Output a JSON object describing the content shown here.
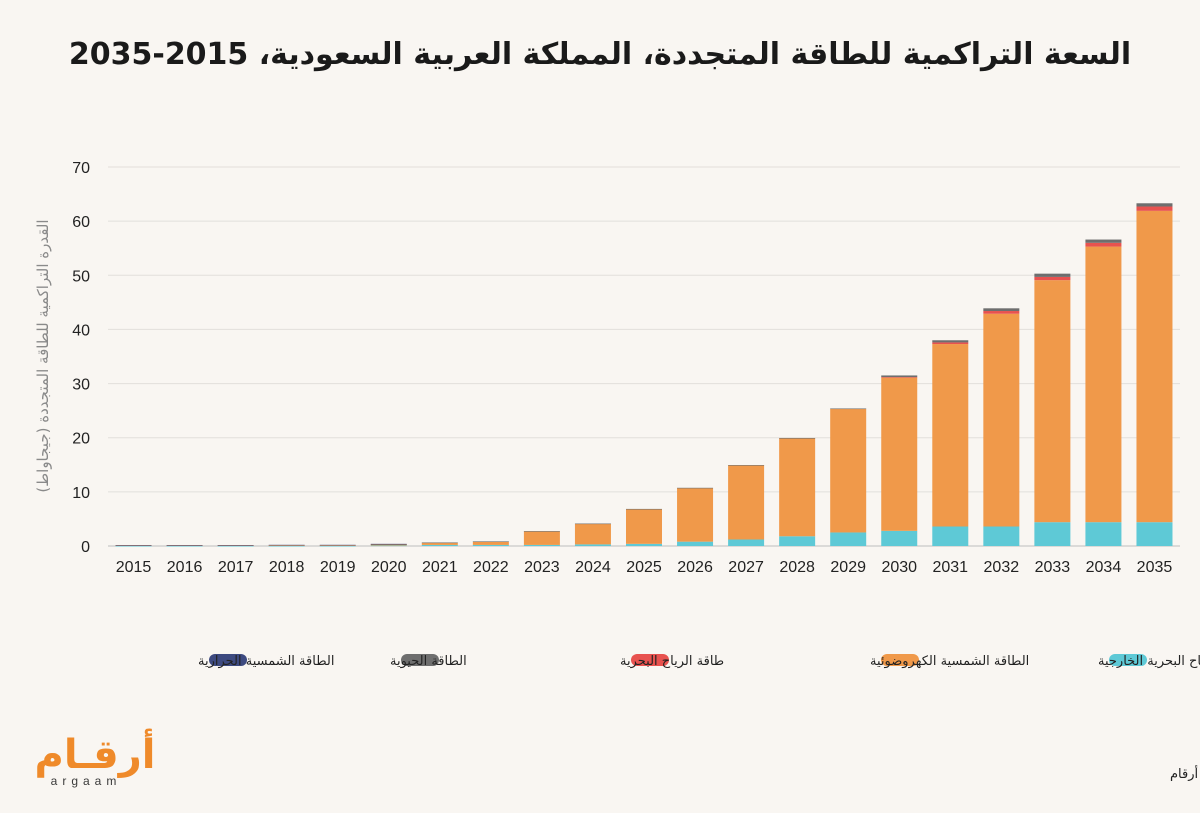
{
  "title": "السعة التراكمية للطاقة المتجددة، المملكة العربية السعودية، 2015-2035",
  "source": "المصدر: جلوبال داتا / أرقام",
  "logo": {
    "arabic": "أرقـام",
    "latin": "argaam",
    "color": "#ef8a2a"
  },
  "chart_data": {
    "type": "bar",
    "stacked": true,
    "title": "السعة التراكمية للطاقة المتجددة، المملكة العربية السعودية، 2015-2035",
    "ylabel": "القدرة التراكمية للطاقة المتجددة (جيجاواط)",
    "xlabel": "",
    "ylim": [
      0,
      70
    ],
    "yticks": [
      0,
      10,
      20,
      30,
      40,
      50,
      60,
      70
    ],
    "grid": true,
    "legend_position": "bottom",
    "categories": [
      "2015",
      "2016",
      "2017",
      "2018",
      "2019",
      "2020",
      "2021",
      "2022",
      "2023",
      "2024",
      "2025",
      "2026",
      "2027",
      "2028",
      "2029",
      "2030",
      "2031",
      "2032",
      "2033",
      "2034",
      "2035"
    ],
    "series": [
      {
        "name": "طاقة الرياح البحرية الخارجية",
        "color": "#5ec9d6",
        "values": [
          0.02,
          0.02,
          0.02,
          0.02,
          0.02,
          0.1,
          0.2,
          0.2,
          0.2,
          0.3,
          0.4,
          0.8,
          1.2,
          1.8,
          2.5,
          2.8,
          3.6,
          3.6,
          4.4,
          4.4,
          4.4
        ]
      },
      {
        "name": "الطاقة الشمسية الكهروضوئية",
        "color": "#f0994a",
        "values": [
          0.1,
          0.1,
          0.1,
          0.1,
          0.1,
          0.2,
          0.4,
          0.6,
          2.5,
          3.8,
          6.4,
          9.9,
          13.7,
          18.1,
          22.8,
          28.3,
          33.7,
          39.3,
          44.7,
          50.9,
          57.5
        ]
      },
      {
        "name": "طاقة الرياح البحرية",
        "color": "#e8524f",
        "values": [
          0,
          0,
          0,
          0,
          0,
          0,
          0,
          0,
          0,
          0,
          0,
          0,
          0,
          0,
          0,
          0.1,
          0.3,
          0.5,
          0.6,
          0.7,
          0.8
        ]
      },
      {
        "name": "الطاقة الحيوية",
        "color": "#6e6e6e",
        "values": [
          0,
          0,
          0,
          0,
          0,
          0.05,
          0.05,
          0.05,
          0.05,
          0.05,
          0.05,
          0.05,
          0.05,
          0.05,
          0.1,
          0.3,
          0.4,
          0.5,
          0.6,
          0.6,
          0.6
        ]
      },
      {
        "name": "الطاقة الشمسية الحرارية",
        "color": "#3d4a80",
        "values": [
          0.05,
          0.05,
          0.05,
          0.1,
          0.1,
          0.05,
          0,
          0,
          0,
          0,
          0,
          0,
          0,
          0,
          0,
          0,
          0,
          0,
          0,
          0,
          0
        ]
      }
    ]
  }
}
